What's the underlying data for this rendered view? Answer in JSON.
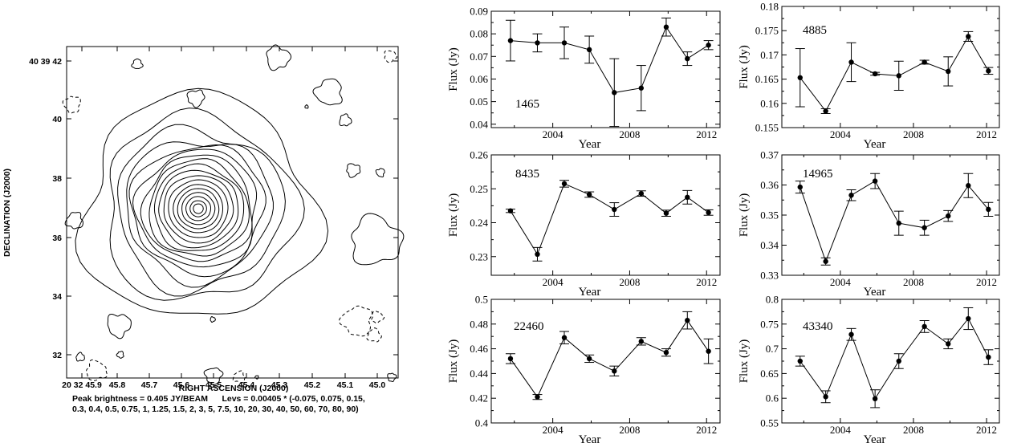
{
  "contour_map": {
    "xlabel": "RIGHT ASCENSION (J2000)",
    "ylabel": "DECLINATION (J2000)",
    "x_ticks": [
      "20 32 45.9",
      "45.8",
      "45.7",
      "45.6",
      "45.5",
      "45.4",
      "45.3",
      "45.2",
      "45.1",
      "45.0"
    ],
    "y_ticks": [
      "40 39 42",
      "40",
      "38",
      "36",
      "34",
      "32"
    ],
    "caption_line1": "Peak brightness = 0.405 JY/BEAM      Levs = 0.00405 * (-0.075, 0.075, 0.15,",
    "caption_line2": "0.3, 0.4, 0.5, 0.75, 1, 1.25, 1.5, 2, 3, 5, 7.5, 10, 20, 30, 40, 50, 60, 70, 80, 90)"
  },
  "chart_data": [
    {
      "type": "line",
      "label": "1465",
      "xlabel": "Year",
      "ylabel": "Flux (Jy)",
      "x_ticks": [
        "2004",
        "2008",
        "2012"
      ],
      "y_ticks": [
        "0.04",
        "0.05",
        "0.06",
        "0.07",
        "0.08",
        "0.09"
      ],
      "xlim": [
        2000.8,
        2012.7
      ],
      "ylim": [
        0.0385,
        0.09
      ],
      "x": [
        2001.8,
        2003.2,
        2004.6,
        2005.9,
        2007.2,
        2008.6,
        2009.9,
        2011.0,
        2012.1
      ],
      "y": [
        0.077,
        0.076,
        0.076,
        0.073,
        0.054,
        0.056,
        0.083,
        0.069,
        0.075
      ],
      "err": [
        0.009,
        0.004,
        0.007,
        0.006,
        0.015,
        0.01,
        0.004,
        0.003,
        0.002
      ]
    },
    {
      "type": "line",
      "label": "4885",
      "xlabel": "Year",
      "ylabel": "Flux (Jy)",
      "x_ticks": [
        "2004",
        "2008",
        "2012"
      ],
      "y_ticks": [
        "0.155",
        "0.16",
        "0.165",
        "0.17",
        "0.175",
        "0.18"
      ],
      "xlim": [
        2000.8,
        2012.7
      ],
      "ylim": [
        0.155,
        0.18
      ],
      "x": [
        2001.8,
        2003.2,
        2004.6,
        2005.9,
        2007.2,
        2008.6,
        2009.9,
        2011.0,
        2012.1
      ],
      "y": [
        0.1653,
        0.1584,
        0.1685,
        0.1661,
        0.1657,
        0.1685,
        0.1666,
        0.1738,
        0.1667
      ],
      "err": [
        0.006,
        0.0005,
        0.004,
        0.0003,
        0.003,
        0.0004,
        0.003,
        0.001,
        0.0007
      ]
    },
    {
      "type": "line",
      "label": "8435",
      "xlabel": "Year",
      "ylabel": "Flux (Jy)",
      "x_ticks": [
        "2004",
        "2008",
        "2012"
      ],
      "y_ticks": [
        "0.23",
        "0.24",
        "0.25",
        "0.26"
      ],
      "xlim": [
        2000.8,
        2012.7
      ],
      "ylim": [
        0.2245,
        0.26
      ],
      "x": [
        2001.8,
        2003.2,
        2004.6,
        2005.9,
        2007.2,
        2008.6,
        2009.9,
        2011.0,
        2012.1
      ],
      "y": [
        0.2435,
        0.2307,
        0.2515,
        0.2483,
        0.2439,
        0.2486,
        0.2428,
        0.2475,
        0.243
      ],
      "err": [
        0.0005,
        0.002,
        0.001,
        0.0008,
        0.002,
        0.0008,
        0.0009,
        0.002,
        0.0008
      ]
    },
    {
      "type": "line",
      "label": "14965",
      "xlabel": "Year",
      "ylabel": "Flux (Jy)",
      "x_ticks": [
        "2004",
        "2008",
        "2012"
      ],
      "y_ticks": [
        "0.33",
        "0.34",
        "0.35",
        "0.36",
        "0.37"
      ],
      "xlim": [
        2000.8,
        2012.7
      ],
      "ylim": [
        0.33,
        0.37
      ],
      "x": [
        2001.8,
        2003.2,
        2004.6,
        2005.9,
        2007.2,
        2008.6,
        2009.9,
        2011.0,
        2012.1
      ],
      "y": [
        0.3593,
        0.3346,
        0.3566,
        0.3613,
        0.3473,
        0.3458,
        0.3497,
        0.3598,
        0.3519
      ],
      "err": [
        0.002,
        0.0012,
        0.0018,
        0.0025,
        0.004,
        0.0025,
        0.0018,
        0.004,
        0.0023
      ]
    },
    {
      "type": "line",
      "label": "22460",
      "xlabel": "Year",
      "ylabel": "Flux (Jy)",
      "x_ticks": [
        "2004",
        "2008",
        "2012"
      ],
      "y_ticks": [
        "0.4",
        "0.42",
        "0.44",
        "0.46",
        "0.48",
        "0.5"
      ],
      "xlim": [
        2000.8,
        2012.7
      ],
      "ylim": [
        0.4,
        0.5
      ],
      "x": [
        2001.8,
        2003.2,
        2004.6,
        2005.9,
        2007.2,
        2008.6,
        2009.9,
        2011.0,
        2012.1
      ],
      "y": [
        0.452,
        0.421,
        0.469,
        0.452,
        0.442,
        0.466,
        0.457,
        0.483,
        0.458
      ],
      "err": [
        0.004,
        0.002,
        0.005,
        0.003,
        0.004,
        0.003,
        0.003,
        0.007,
        0.01
      ]
    },
    {
      "type": "line",
      "label": "43340",
      "xlabel": "Year",
      "ylabel": "Flux (Jy)",
      "x_ticks": [
        "2004",
        "2008",
        "2012"
      ],
      "y_ticks": [
        "0.55",
        "0.6",
        "0.65",
        "0.7",
        "0.75",
        "0.8"
      ],
      "xlim": [
        2000.8,
        2012.7
      ],
      "ylim": [
        0.55,
        0.8
      ],
      "x": [
        2001.8,
        2003.2,
        2004.6,
        2005.9,
        2007.2,
        2008.6,
        2009.9,
        2011.0,
        2012.1
      ],
      "y": [
        0.675,
        0.603,
        0.729,
        0.599,
        0.675,
        0.745,
        0.71,
        0.761,
        0.683
      ],
      "err": [
        0.01,
        0.012,
        0.012,
        0.018,
        0.015,
        0.012,
        0.01,
        0.022,
        0.015
      ]
    }
  ]
}
